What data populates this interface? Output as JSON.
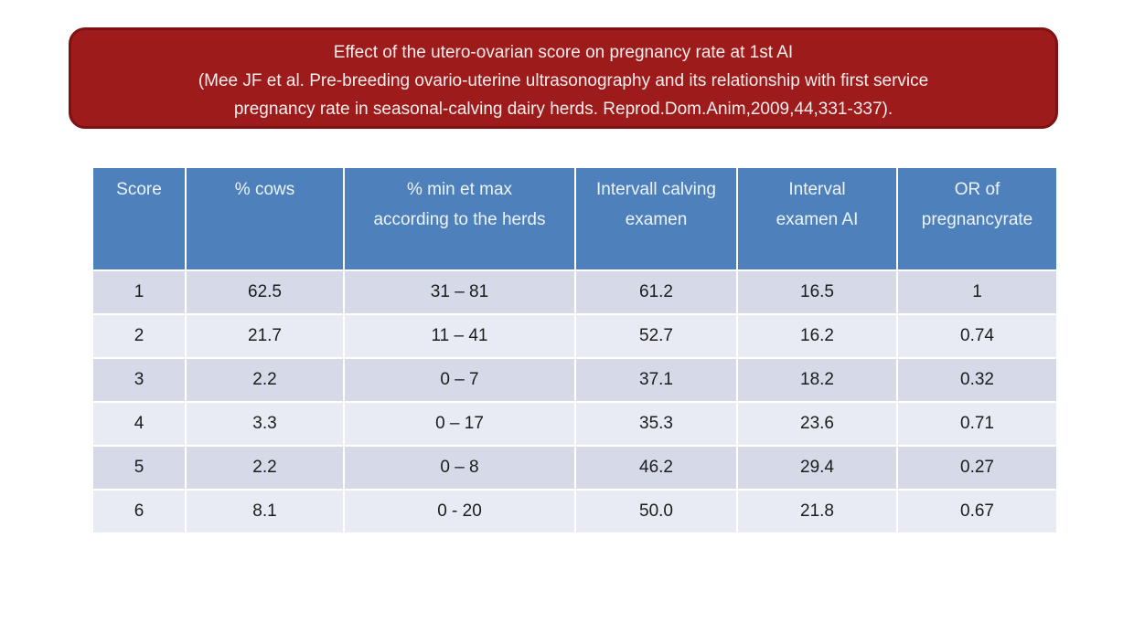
{
  "slide": {
    "background_color": "#FFFFFF",
    "title_box": {
      "fill_color": "#9E1B1B",
      "border_color": "#7E1212",
      "text_color": "#F6EDED",
      "lines": [
        "Effect of the utero-ovarian score on pregnancy rate at 1st AI",
        "(Mee JF et al. Pre-breeding ovario-uterine ultrasonography and its relationship with first service",
        "pregnancy rate in seasonal-calving dairy herds. Reprod.Dom.Anim,2009,44,331-337)."
      ]
    },
    "table": {
      "header_bg_color": "#4E81BC",
      "header_text_color": "#EDF3FA",
      "band_dark_color": "#D5D9E8",
      "band_light_color": "#E9EBF4",
      "body_text_color": "#1C1C1C",
      "headers": [
        "Score",
        "% cows",
        "% min et max according to the herds",
        "Intervall calving examen",
        "Interval examen AI",
        "OR of pregnancyrate"
      ],
      "rows": [
        [
          "1",
          "62.5",
          "31 – 81",
          "61.2",
          "16.5",
          "1"
        ],
        [
          "2",
          "21.7",
          "11 – 41",
          "52.7",
          "16.2",
          "0.74"
        ],
        [
          "3",
          "2.2",
          "0 – 7",
          "37.1",
          "18.2",
          "0.32"
        ],
        [
          "4",
          "3.3",
          "0 – 17",
          "35.3",
          "23.6",
          "0.71"
        ],
        [
          "5",
          "2.2",
          "0 – 8",
          "46.2",
          "29.4",
          "0.27"
        ],
        [
          "6",
          "8.1",
          "0 - 20",
          "50.0",
          "21.8",
          "0.67"
        ]
      ]
    }
  }
}
